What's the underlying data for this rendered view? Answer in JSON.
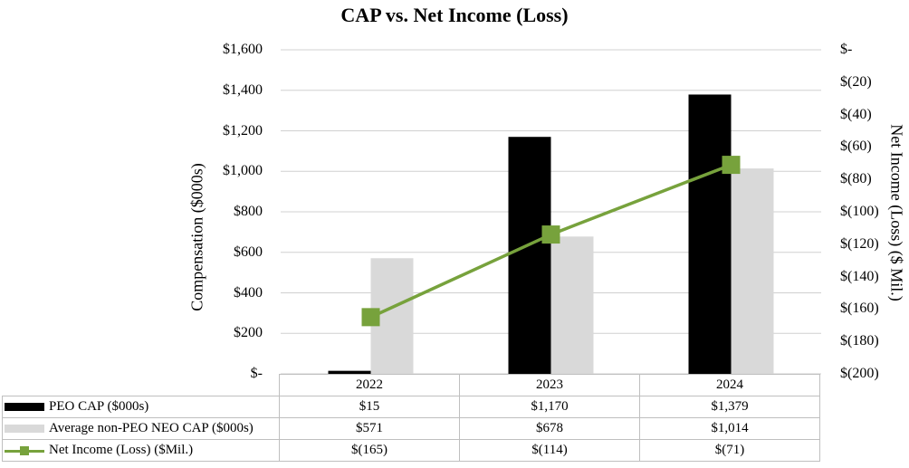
{
  "chart_data": {
    "type": "bar",
    "title": "CAP vs. Net Income (Loss)",
    "categories": [
      "2022",
      "2023",
      "2024"
    ],
    "y_left": {
      "label": "Compensation ($000s)",
      "range": [
        0,
        1600
      ],
      "ticks": [
        "$-",
        "$200",
        "$400",
        "$600",
        "$800",
        "$1,000",
        "$1,200",
        "$1,400",
        "$1,600"
      ]
    },
    "y_right": {
      "label": "Net Income (Loss) ($ Mil.)",
      "range": [
        -200,
        0
      ],
      "ticks": [
        "$(200)",
        "$(180)",
        "$(160)",
        "$(140)",
        "$(120)",
        "$(100)",
        "$(80)",
        "$(60)",
        "$(40)",
        "$(20)",
        "$-"
      ]
    },
    "series": [
      {
        "name": "PEO CAP ($000s)",
        "type": "bar",
        "axis": "left",
        "color": "#000000",
        "values": [
          15,
          1170,
          1379
        ],
        "labels": [
          "$15",
          "$1,170",
          "$1,379"
        ]
      },
      {
        "name": "Average non-PEO NEO CAP ($000s)",
        "type": "bar",
        "axis": "left",
        "color": "#d9d9d9",
        "values": [
          571,
          678,
          1014
        ],
        "labels": [
          "$571",
          "$678",
          "$1,014"
        ]
      },
      {
        "name": "Net Income (Loss) ($Mil.)",
        "type": "line",
        "axis": "right",
        "color": "#77a23c",
        "marker": "square",
        "values": [
          -165,
          -114,
          -71
        ],
        "labels": [
          "$(165)",
          "$(114)",
          "$(71)"
        ]
      }
    ],
    "grid": true,
    "legend": "data table below chart"
  }
}
